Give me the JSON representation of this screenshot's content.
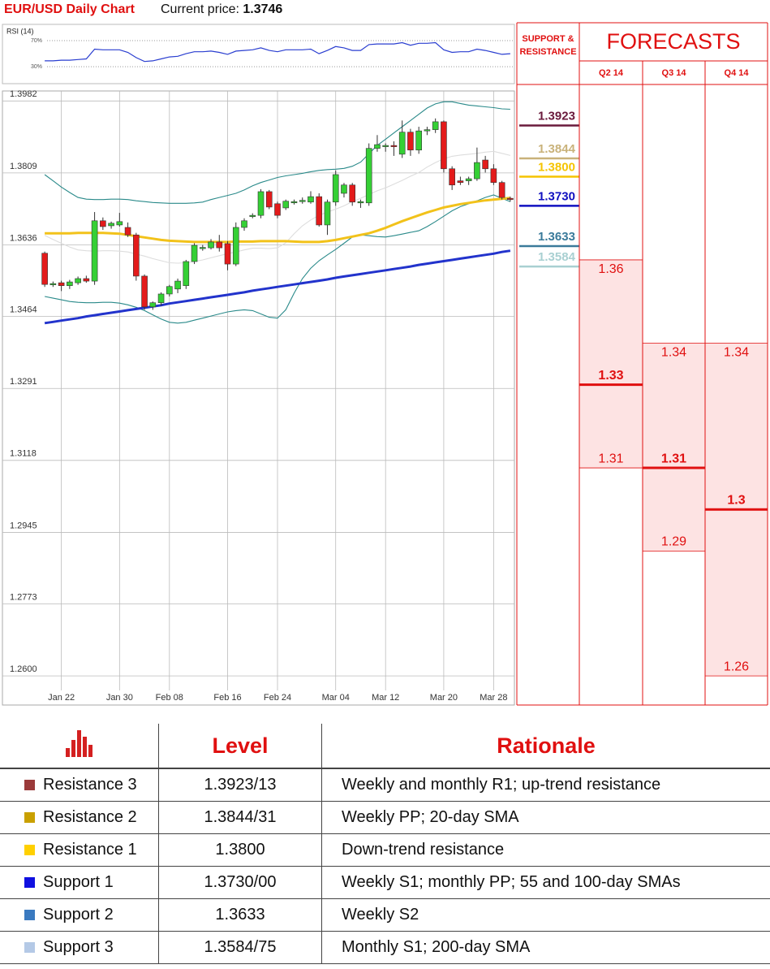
{
  "header": {
    "title": "EUR/USD Daily Chart",
    "price_label": "Current price:",
    "price": "1.3746"
  },
  "chart_data": [
    {
      "type": "line",
      "title": "RSI (14)",
      "color": "#2a3ed0",
      "values": [
        39,
        39,
        40,
        40,
        41,
        42,
        57,
        56,
        56,
        56,
        52,
        44,
        38,
        39,
        42,
        45,
        46,
        50,
        53,
        53,
        54,
        52,
        49,
        54,
        55,
        56,
        59,
        55,
        53,
        56,
        56,
        56,
        57,
        50,
        55,
        61,
        59,
        55,
        55,
        64,
        65,
        65,
        65,
        67,
        63,
        66,
        66,
        67,
        56,
        52,
        53,
        53,
        57,
        55,
        52,
        49,
        50
      ],
      "ylim": [
        4,
        95
      ],
      "yticks": [
        {
          "value": 70,
          "label": "70%"
        },
        {
          "value": 30,
          "label": "30%"
        }
      ]
    },
    {
      "type": "candlestick",
      "categories": [
        null,
        null,
        "Jan 22",
        null,
        null,
        null,
        null,
        null,
        null,
        "Jan 30",
        null,
        null,
        null,
        null,
        null,
        "Feb 08",
        null,
        null,
        null,
        null,
        null,
        null,
        "Feb 16",
        null,
        null,
        null,
        null,
        null,
        "Feb 24",
        null,
        null,
        null,
        null,
        null,
        null,
        "Mar 04",
        null,
        null,
        null,
        null,
        null,
        "Mar 12",
        null,
        null,
        null,
        null,
        null,
        null,
        "Mar 20",
        null,
        null,
        null,
        null,
        null,
        "Mar 28",
        null,
        null
      ],
      "open": [
        1.3616,
        1.3541,
        1.3545,
        1.3538,
        1.3545,
        1.3555,
        1.3549,
        1.3694,
        1.3682,
        1.3684,
        1.3678,
        1.366,
        1.3561,
        1.3487,
        1.3497,
        1.3518,
        1.353,
        1.3538,
        1.3596,
        1.3628,
        1.3629,
        1.3643,
        1.3639,
        1.359,
        1.3678,
        1.3705,
        1.3707,
        1.3764,
        1.3735,
        1.3725,
        1.3739,
        1.3741,
        1.3739,
        1.3752,
        1.3684,
        1.3739,
        1.376,
        1.378,
        1.3737,
        1.3737,
        1.3868,
        1.3873,
        1.3875,
        1.3854,
        1.3907,
        1.3864,
        1.391,
        1.3913,
        1.3932,
        1.3819,
        1.379,
        1.379,
        1.3795,
        1.384,
        1.3819,
        1.3786,
        1.3748
      ],
      "high": [
        1.362,
        1.3548,
        1.355,
        1.3552,
        1.356,
        1.3562,
        1.3715,
        1.3702,
        1.3692,
        1.3713,
        1.369,
        1.3665,
        1.3565,
        1.35,
        1.3522,
        1.354,
        1.3555,
        1.36,
        1.364,
        1.3636,
        1.365,
        1.366,
        1.3645,
        1.369,
        1.37,
        1.3712,
        1.377,
        1.3768,
        1.374,
        1.3745,
        1.3745,
        1.375,
        1.3765,
        1.376,
        1.3745,
        1.3815,
        1.3785,
        1.3785,
        1.3745,
        1.388,
        1.39,
        1.388,
        1.3885,
        1.3935,
        1.3915,
        1.392,
        1.392,
        1.394,
        1.3935,
        1.3825,
        1.38,
        1.38,
        1.387,
        1.385,
        1.383,
        1.379,
        1.3752
      ],
      "low": [
        1.3535,
        1.3535,
        1.3525,
        1.353,
        1.354,
        1.3545,
        1.354,
        1.3672,
        1.3675,
        1.368,
        1.3655,
        1.355,
        1.348,
        1.348,
        1.349,
        1.3512,
        1.352,
        1.353,
        1.359,
        1.3622,
        1.3625,
        1.362,
        1.3575,
        1.3585,
        1.367,
        1.37,
        1.37,
        1.3722,
        1.37,
        1.372,
        1.3733,
        1.3735,
        1.3735,
        1.368,
        1.366,
        1.373,
        1.375,
        1.373,
        1.3725,
        1.373,
        1.386,
        1.386,
        1.385,
        1.3845,
        1.385,
        1.3855,
        1.39,
        1.3905,
        1.381,
        1.3768,
        1.378,
        1.378,
        1.379,
        1.381,
        1.378,
        1.3745,
        1.374
      ],
      "close": [
        1.3541,
        1.3543,
        1.3538,
        1.3547,
        1.3555,
        1.3549,
        1.3694,
        1.368,
        1.3688,
        1.3692,
        1.366,
        1.3561,
        1.3487,
        1.3497,
        1.3518,
        1.3536,
        1.3549,
        1.3596,
        1.3635,
        1.363,
        1.3643,
        1.3629,
        1.359,
        1.3678,
        1.3694,
        1.3707,
        1.3764,
        1.3727,
        1.3707,
        1.3741,
        1.374,
        1.3743,
        1.3752,
        1.3684,
        1.3739,
        1.3805,
        1.378,
        1.3739,
        1.374,
        1.3868,
        1.3877,
        1.3875,
        1.3872,
        1.3907,
        1.3864,
        1.391,
        1.3913,
        1.3932,
        1.3819,
        1.378,
        1.3786,
        1.3795,
        1.3834,
        1.3819,
        1.3786,
        1.375,
        1.3746
      ],
      "up_color": "#35d035",
      "down_color": "#e31b1b",
      "series": [
        {
          "color": "#2a8a8a",
          "values": [
            1.3805,
            1.379,
            1.3775,
            1.3762,
            1.375,
            1.3746,
            1.3745,
            1.3745,
            1.3746,
            1.3746,
            1.3745,
            1.3742,
            1.374,
            1.3738,
            1.3737,
            1.3736,
            1.3736,
            1.3736,
            1.3737,
            1.3739,
            1.3745,
            1.375,
            1.3755,
            1.376,
            1.3768,
            1.3778,
            1.3786,
            1.3792,
            1.3798,
            1.3802,
            1.3805,
            1.3808,
            1.3812,
            1.3815,
            1.3817,
            1.3818,
            1.382,
            1.3825,
            1.3835,
            1.3855,
            1.3875,
            1.389,
            1.3905,
            1.392,
            1.3935,
            1.395,
            1.3965,
            1.3975,
            1.398,
            1.398,
            1.3976,
            1.3972,
            1.397,
            1.3968,
            1.3966,
            1.3963,
            1.3962
          ]
        },
        {
          "color": "#2a8a8a",
          "values": [
            1.3512,
            1.3508,
            1.3504,
            1.35,
            1.3498,
            1.3497,
            1.3497,
            1.3498,
            1.3498,
            1.3496,
            1.3492,
            1.3486,
            1.3478,
            1.3468,
            1.3458,
            1.345,
            1.3448,
            1.345,
            1.3455,
            1.346,
            1.3465,
            1.347,
            1.3475,
            1.3478,
            1.348,
            1.3478,
            1.347,
            1.3462,
            1.346,
            1.348,
            1.352,
            1.3555,
            1.358,
            1.3598,
            1.3612,
            1.3625,
            1.364,
            1.3655,
            1.366,
            1.3658,
            1.3656,
            1.3655,
            1.3658,
            1.3662,
            1.3666,
            1.367,
            1.368,
            1.3692,
            1.3705,
            1.3718,
            1.3728,
            1.3735,
            1.3742,
            1.375,
            1.3756,
            1.3748,
            1.374
          ]
        },
        {
          "color": "#dddddd",
          "values": [
            1.3659,
            1.3649,
            1.364,
            1.3631,
            1.3624,
            1.3622,
            1.3621,
            1.3622,
            1.3622,
            1.3621,
            1.3619,
            1.3614,
            1.3609,
            1.3603,
            1.3598,
            1.3593,
            1.3592,
            1.3593,
            1.3596,
            1.36,
            1.3605,
            1.361,
            1.3615,
            1.3619,
            1.3624,
            1.3628,
            1.3628,
            1.3627,
            1.3629,
            1.3641,
            1.3663,
            1.3682,
            1.3696,
            1.3707,
            1.3715,
            1.3722,
            1.373,
            1.374,
            1.3748,
            1.3757,
            1.3766,
            1.3773,
            1.3782,
            1.3791,
            1.3801,
            1.381,
            1.3823,
            1.3834,
            1.3843,
            1.3849,
            1.3852,
            1.3854,
            1.3856,
            1.3859,
            1.3861,
            1.3856,
            1.3851
          ]
        },
        {
          "color": "#f2c21a",
          "values": [
            1.3664,
            1.3664,
            1.3664,
            1.3664,
            1.3665,
            1.3665,
            1.3665,
            1.3665,
            1.3664,
            1.3663,
            1.366,
            1.3657,
            1.3654,
            1.3651,
            1.3648,
            1.3646,
            1.3645,
            1.3644,
            1.3643,
            1.3643,
            1.3643,
            1.3643,
            1.3643,
            1.3644,
            1.3644,
            1.3644,
            1.3645,
            1.3645,
            1.3645,
            1.3645,
            1.3644,
            1.3643,
            1.3643,
            1.3643,
            1.3645,
            1.3648,
            1.3652,
            1.3656,
            1.366,
            1.3664,
            1.367,
            1.3677,
            1.3685,
            1.3693,
            1.37,
            1.3707,
            1.3714,
            1.372,
            1.3726,
            1.373,
            1.3734,
            1.3737,
            1.374,
            1.3743,
            1.3745,
            1.3747,
            1.3749
          ]
        },
        {
          "color": "#2233cc",
          "values": [
            1.3448,
            1.3451,
            1.3454,
            1.3457,
            1.346,
            1.3464,
            1.3467,
            1.347,
            1.3473,
            1.3476,
            1.3479,
            1.3482,
            1.3485,
            1.3488,
            1.3491,
            1.3495,
            1.3498,
            1.3501,
            1.3504,
            1.3507,
            1.351,
            1.3513,
            1.3516,
            1.3519,
            1.3522,
            1.3526,
            1.3529,
            1.3532,
            1.3535,
            1.3538,
            1.3541,
            1.3544,
            1.3547,
            1.355,
            1.3553,
            1.3557,
            1.356,
            1.3563,
            1.3566,
            1.3569,
            1.3572,
            1.3575,
            1.3578,
            1.3581,
            1.3584,
            1.3588,
            1.3591,
            1.3594,
            1.3597,
            1.36,
            1.3603,
            1.3606,
            1.3609,
            1.3612,
            1.3615,
            1.3619,
            1.3622
          ]
        }
      ],
      "ylim": [
        1.253,
        1.4006
      ],
      "yticks": [
        1.3982,
        1.3809,
        1.3636,
        1.3464,
        1.3291,
        1.3118,
        1.2945,
        1.2773,
        {
          "value": 1.26,
          "label": "1.2600"
        }
      ],
      "grid": true,
      "levels": {
        "title": "SUPPORT & RESISTANCE",
        "values": [
          1.3923,
          1.3844,
          1.38,
          1.373,
          1.3633,
          1.3584
        ],
        "value_labels": [
          "1.3923",
          "1.3844",
          "1.3800",
          "1.3730",
          "1.3633",
          "1.3584"
        ],
        "colors": [
          "#6a1a3c",
          "#c9b27a",
          "#f5c400",
          "#1010c0",
          "#3a7a9a",
          "#a9d0d2"
        ]
      }
    },
    {
      "type": "range",
      "title": "FORECASTS",
      "color": "#e01010",
      "fill": "#fde3e3",
      "categories": [
        "Q2 14",
        "Q3 14",
        "Q4 14"
      ],
      "high": [
        1.36,
        1.34,
        1.34
      ],
      "mid": [
        1.33,
        1.31,
        1.3
      ],
      "low": [
        1.31,
        1.29,
        1.26
      ]
    }
  ],
  "table": {
    "columns": [
      "Level",
      "Rationale"
    ],
    "rows": [
      {
        "name": "Resistance 3",
        "color": "#9b3a3a",
        "level": "1.3923/13",
        "rationale": "Weekly and monthly R1; up-trend resistance"
      },
      {
        "name": "Resistance 2",
        "color": "#c9a000",
        "level": "1.3844/31",
        "rationale": "Weekly PP; 20-day SMA"
      },
      {
        "name": "Resistance 1",
        "color": "#ffd000",
        "level": "1.3800",
        "rationale": "Down-trend resistance"
      },
      {
        "name": "Support 1",
        "color": "#1010e0",
        "level": "1.3730/00",
        "rationale": "Weekly S1; monthly PP; 55 and 100-day SMAs"
      },
      {
        "name": "Support 2",
        "color": "#3a7ac0",
        "level": "1.3633",
        "rationale": "Weekly S2"
      },
      {
        "name": "Support 3",
        "color": "#b4c9e6",
        "level": "1.3584/75",
        "rationale": "Monthly S1; 200-day SMA"
      }
    ]
  }
}
